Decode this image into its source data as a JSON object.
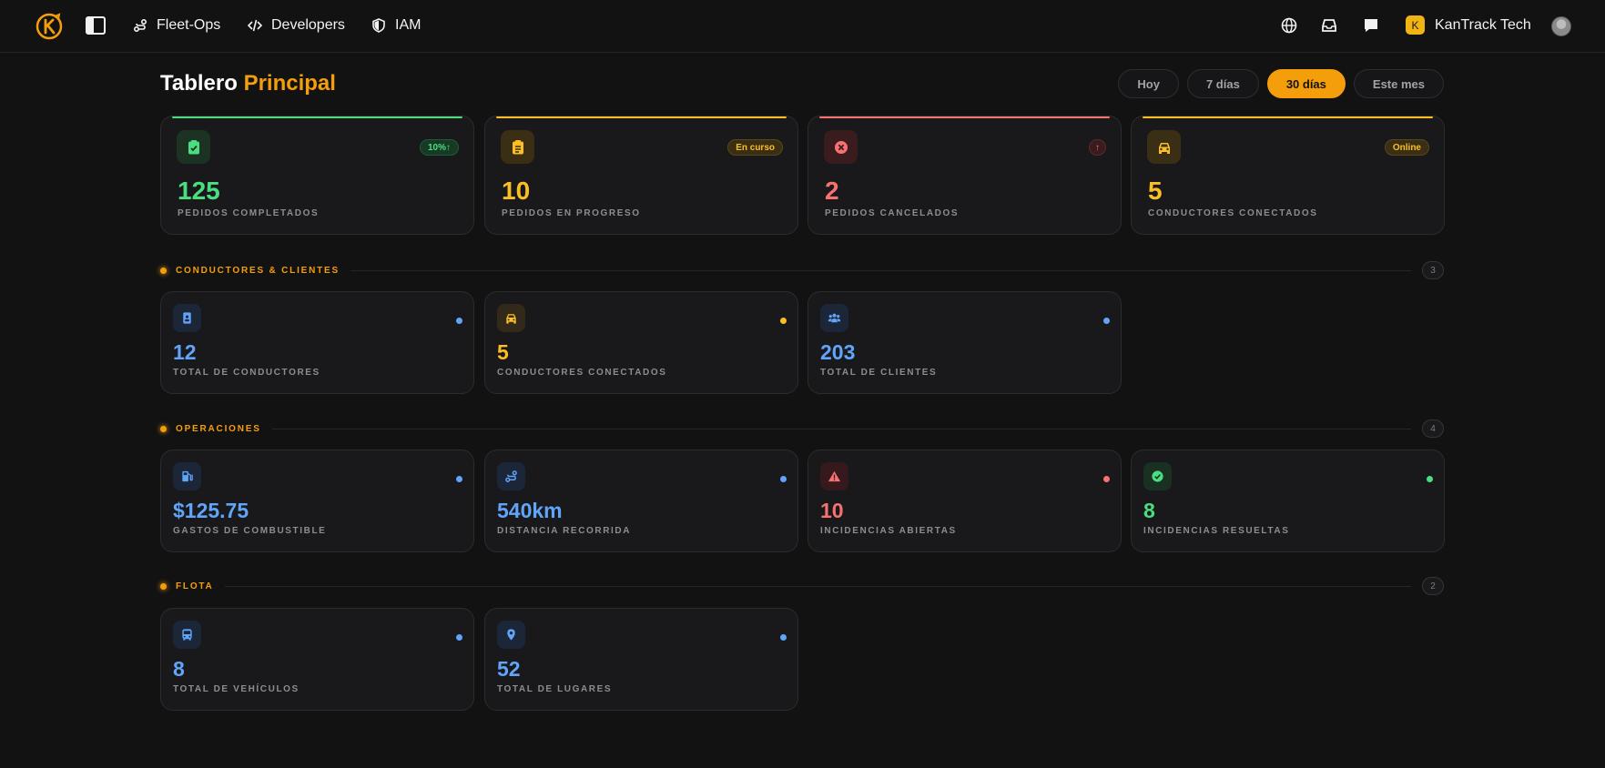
{
  "nav": {
    "links": [
      "Fleet-Ops",
      "Developers",
      "IAM"
    ],
    "org_initial": "K",
    "org_name": "KanTrack Tech"
  },
  "header": {
    "title": "Tablero",
    "title_accent": "Principal",
    "filters": [
      "Hoy",
      "7 días",
      "30 días",
      "Este mes"
    ],
    "active_filter": "30 días"
  },
  "colors": {
    "accent": "#f59e0b",
    "green": "#4ade80",
    "yellow": "#fbbf24",
    "red": "#f87171",
    "blue": "#60a5fa"
  },
  "stats": [
    {
      "value": "125",
      "label": "PEDIDOS COMPLETADOS",
      "badge": "10%↑",
      "color": "green",
      "icon": "clipboard-check-icon"
    },
    {
      "value": "10",
      "label": "PEDIDOS EN PROGRESO",
      "badge": "En curso",
      "color": "yellow",
      "icon": "clipboard-list-icon"
    },
    {
      "value": "2",
      "label": "PEDIDOS CANCELADOS",
      "badge": "↑",
      "color": "red",
      "icon": "x-circle-icon"
    },
    {
      "value": "5",
      "label": "CONDUCTORES CONECTADOS",
      "badge": "Online",
      "color": "yellow",
      "icon": "car-icon"
    }
  ],
  "sections": [
    {
      "name": "CONDUCTORES & CLIENTES",
      "count": "3",
      "cards": [
        {
          "value": "12",
          "label": "TOTAL DE CONDUCTORES",
          "color": "blue",
          "icon": "id-badge-icon"
        },
        {
          "value": "5",
          "label": "CONDUCTORES CONECTADOS",
          "color": "yellow",
          "icon": "car-icon"
        },
        {
          "value": "203",
          "label": "TOTAL DE CLIENTES",
          "color": "blue",
          "icon": "users-icon"
        }
      ]
    },
    {
      "name": "OPERACIONES",
      "count": "4",
      "cards": [
        {
          "value": "$125.75",
          "label": "GASTOS DE COMBUSTIBLE",
          "color": "blue",
          "icon": "fuel-pump-icon"
        },
        {
          "value": "540km",
          "label": "DISTANCIA RECORRIDA",
          "color": "blue",
          "icon": "route-icon"
        },
        {
          "value": "10",
          "label": "INCIDENCIAS ABIERTAS",
          "color": "red",
          "icon": "warning-icon"
        },
        {
          "value": "8",
          "label": "INCIDENCIAS RESUELTAS",
          "color": "green",
          "icon": "check-circle-icon"
        }
      ]
    },
    {
      "name": "FLOTA",
      "count": "2",
      "cards": [
        {
          "value": "8",
          "label": "TOTAL DE VEHÍCULOS",
          "color": "blue",
          "icon": "bus-icon"
        },
        {
          "value": "52",
          "label": "TOTAL DE LUGARES",
          "color": "blue",
          "icon": "map-pin-icon"
        }
      ]
    }
  ]
}
